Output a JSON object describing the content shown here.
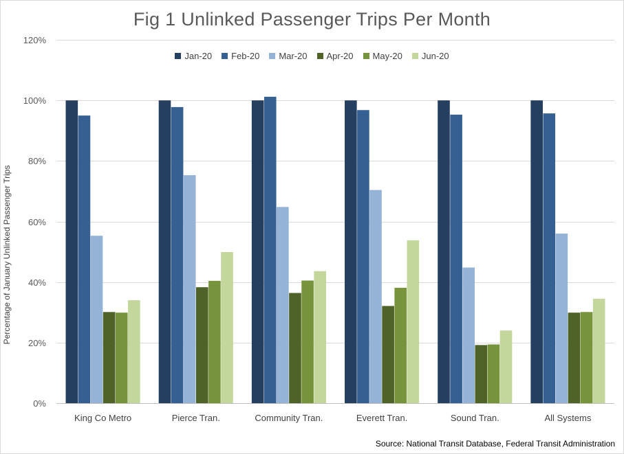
{
  "chart_data": {
    "type": "bar",
    "title": "Fig 1 Unlinked Passenger Trips Per Month",
    "ylabel": "Percentage of January Unlinked Passenger Trips",
    "xlabel": "",
    "ylim": [
      0,
      120
    ],
    "yticks": [
      0,
      20,
      40,
      60,
      80,
      100,
      120
    ],
    "ytick_suffix": "%",
    "grid": true,
    "legend_position": "top",
    "categories": [
      "King Co Metro",
      "Pierce Tran.",
      "Community Tran.",
      "Everett Tran.",
      "Sound Tran.",
      "All Systems"
    ],
    "series": [
      {
        "name": "Jan-20",
        "color": "#243f60",
        "values": [
          100,
          100,
          100,
          100,
          100,
          100
        ]
      },
      {
        "name": "Feb-20",
        "color": "#366092",
        "values": [
          95,
          97.8,
          101.2,
          96.8,
          95.3,
          95.7
        ]
      },
      {
        "name": "Mar-20",
        "color": "#95b3d7",
        "values": [
          55.3,
          75.3,
          64.8,
          70.4,
          44.8,
          56
        ]
      },
      {
        "name": "Apr-20",
        "color": "#4f6228",
        "values": [
          30.1,
          38.3,
          36.4,
          32.1,
          19.2,
          29.9
        ]
      },
      {
        "name": "May-20",
        "color": "#77933c",
        "values": [
          29.9,
          40.4,
          40.5,
          38.1,
          19.4,
          30.1
        ]
      },
      {
        "name": "Jun-20",
        "color": "#c3d69b",
        "values": [
          34,
          49.9,
          43.6,
          53.8,
          24,
          34.5
        ]
      }
    ],
    "source": "Source: National Transit Database, Federal Transit Administration"
  }
}
